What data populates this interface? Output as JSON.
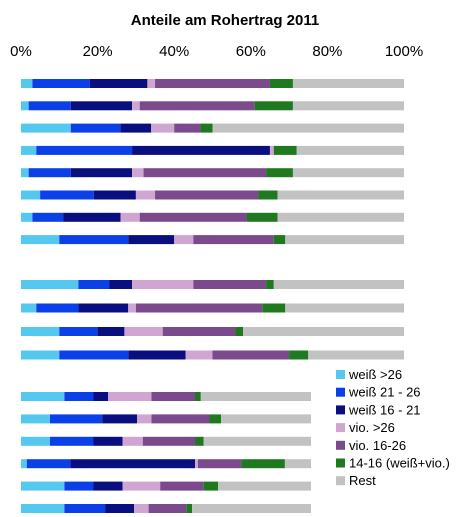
{
  "chart_data": {
    "type": "bar",
    "orientation": "horizontal",
    "stacked": true,
    "title": "Anteile am Rohertrag 2011",
    "xlabel": "",
    "ylabel": "",
    "xlim": [
      0,
      100
    ],
    "x_ticks": [
      "0%",
      "20%",
      "40%",
      "60%",
      "80%",
      "100%"
    ],
    "grid": false,
    "legend_position": "right-bottom",
    "series": [
      {
        "name": "weiß >26",
        "color": "#55c8f0"
      },
      {
        "name": "weiß 21 - 26",
        "color": "#0b3fe8"
      },
      {
        "name": "weiß 16 - 21",
        "color": "#0a0f80"
      },
      {
        "name": "vio. >26",
        "color": "#cfa6d2"
      },
      {
        "name": "vio. 16-26",
        "color": "#7a4a8d"
      },
      {
        "name": "14-16 (weiß+vio.)",
        "color": "#1f7a1f"
      },
      {
        "name": "Rest",
        "color": "#c2c2c2"
      }
    ],
    "groups": [
      {
        "full": true,
        "rows": [
          [
            3,
            15,
            15,
            2,
            30,
            6,
            29
          ],
          [
            2,
            11,
            16,
            2,
            30,
            10,
            29
          ],
          [
            13,
            13,
            8,
            6,
            7,
            3,
            50
          ],
          [
            4,
            25,
            36,
            1,
            0,
            6,
            28
          ],
          [
            2,
            11,
            16,
            3,
            32,
            7,
            29
          ],
          [
            5,
            14,
            11,
            5,
            27,
            5,
            33
          ],
          [
            3,
            8,
            15,
            5,
            28,
            8,
            33
          ],
          [
            10,
            18,
            12,
            5,
            21,
            3,
            31
          ]
        ]
      },
      {
        "full": true,
        "rows": [
          [
            15,
            8,
            6,
            16,
            19,
            2,
            34
          ],
          [
            4,
            11,
            13,
            2,
            33,
            6,
            31
          ],
          [
            10,
            10,
            7,
            10,
            19,
            2,
            42
          ],
          [
            10,
            18,
            15,
            7,
            20,
            5,
            25
          ]
        ]
      },
      {
        "full": false,
        "rows": [
          [
            15,
            10,
            5,
            15,
            15,
            2,
            38
          ],
          [
            10,
            18,
            12,
            5,
            20,
            4,
            31
          ],
          [
            10,
            15,
            10,
            7,
            18,
            3,
            37
          ],
          [
            2,
            15,
            43,
            1,
            15,
            15,
            9
          ],
          [
            15,
            10,
            10,
            13,
            15,
            5,
            32
          ],
          [
            15,
            14,
            10,
            5,
            13,
            2,
            41
          ]
        ]
      }
    ]
  }
}
